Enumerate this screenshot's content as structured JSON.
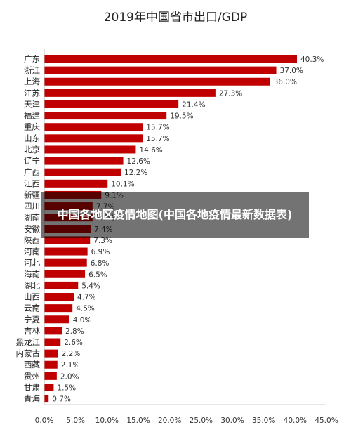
{
  "chart_data": {
    "type": "bar",
    "orientation": "horizontal",
    "title": "2019年中国省市出口/GDP",
    "categories": [
      "广东",
      "浙江",
      "上海",
      "江苏",
      "天津",
      "福建",
      "重庆",
      "山东",
      "北京",
      "辽宁",
      "广西",
      "江西",
      "新疆",
      "四川",
      "湖南",
      "安徽",
      "陕西",
      "河南",
      "河北",
      "海南",
      "湖北",
      "山西",
      "云南",
      "宁夏",
      "吉林",
      "黑龙江",
      "内蒙古",
      "西藏",
      "贵州",
      "甘肃",
      "青海"
    ],
    "values": [
      40.3,
      37.0,
      36.0,
      27.3,
      21.4,
      19.5,
      15.7,
      15.7,
      14.6,
      12.6,
      12.2,
      10.1,
      9.1,
      7.7,
      7.7,
      7.4,
      7.3,
      6.9,
      6.8,
      6.5,
      5.4,
      4.7,
      4.5,
      4.0,
      2.8,
      2.6,
      2.2,
      2.1,
      2.0,
      1.5,
      0.7
    ],
    "value_labels": [
      "40.3%",
      "37.0%",
      "36.0%",
      "27.3%",
      "21.4%",
      "19.5%",
      "15.7%",
      "15.7%",
      "14.6%",
      "12.6%",
      "12.2%",
      "10.1%",
      "9.1%",
      "7.7%",
      "7.7%",
      "7.4%",
      "7.3%",
      "6.9%",
      "6.8%",
      "6.5%",
      "5.4%",
      "4.7%",
      "4.5%",
      "4.0%",
      "2.8%",
      "2.6%",
      "2.2%",
      "2.1%",
      "2.0%",
      "1.5%",
      "0.7%"
    ],
    "xlim": [
      0,
      45
    ],
    "xticks": [
      "0.0%",
      "5.0%",
      "10.0%",
      "15.0%",
      "20.0%",
      "25.0%",
      "30.0%",
      "35.0%",
      "40.0%",
      "45.0%"
    ],
    "bar_color": "#c00000",
    "grid": false,
    "legend": "none"
  },
  "overlay": {
    "text": "中国各地区疫情地图(中国各地疫情最新数据表)"
  }
}
